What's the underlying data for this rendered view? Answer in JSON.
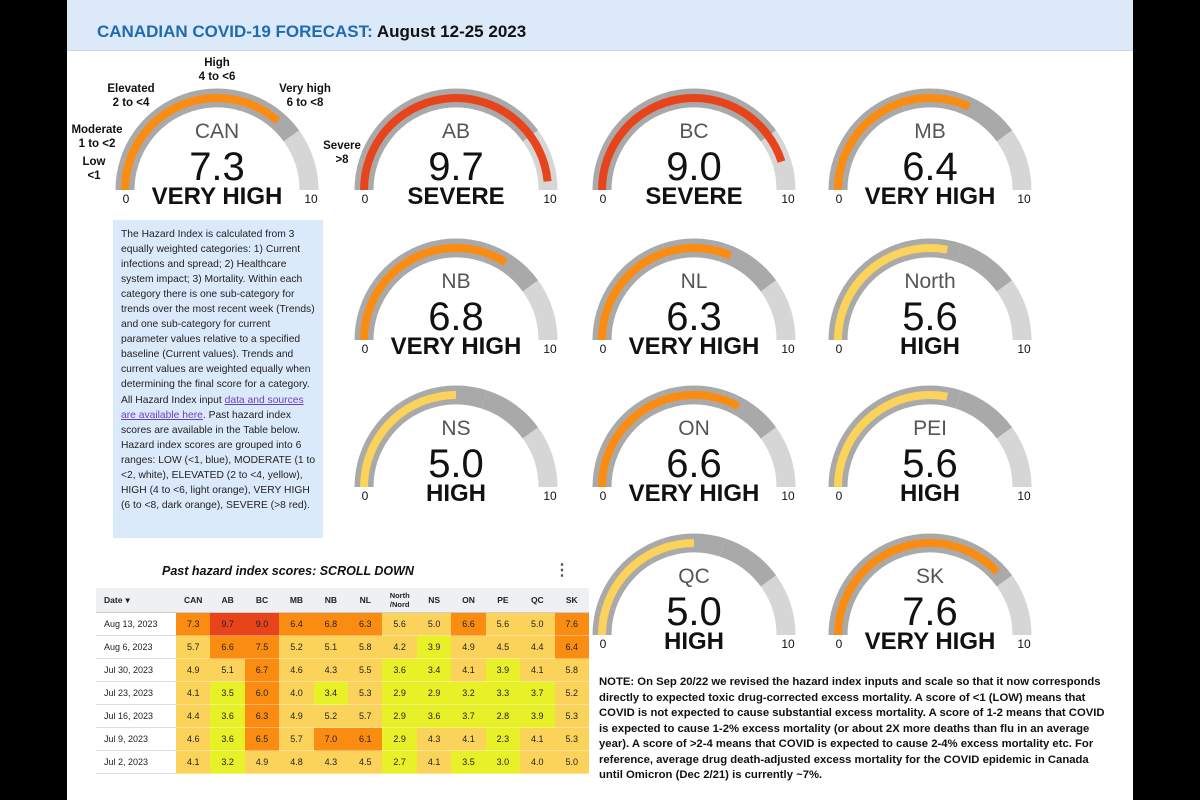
{
  "title": {
    "prefix": "CANADIAN COVID-19 FORECAST:",
    "period": "August 12-25 2023"
  },
  "colors": {
    "low": "#3b82d6",
    "moderate": "#ffffff",
    "elevated": "#e8f028",
    "high": "#fbd35a",
    "very_high": "#fb8c12",
    "severe": "#e8441c",
    "track_dark": "#a9a9a9",
    "track_light": "#d6d6d6",
    "header_bg": "#dbe9f8"
  },
  "scale": {
    "min": 0,
    "max": 10,
    "min_label": "0",
    "max_label": "10"
  },
  "legend": {
    "low": [
      "Low",
      "<1"
    ],
    "moderate": [
      "Moderate",
      "1 to <2"
    ],
    "elevated": [
      "Elevated",
      "2 to <4"
    ],
    "high": [
      "High",
      "4 to <6"
    ],
    "very_high": [
      "Very high",
      "6 to <8"
    ],
    "severe": [
      "Severe",
      ">8"
    ]
  },
  "gauges": [
    {
      "region": "CAN",
      "score": 7.3,
      "score_text": "7.3",
      "level": "VERY HIGH",
      "color": "#fb8c12"
    },
    {
      "region": "AB",
      "score": 9.7,
      "score_text": "9.7",
      "level": "SEVERE",
      "color": "#e8441c"
    },
    {
      "region": "BC",
      "score": 9.0,
      "score_text": "9.0",
      "level": "SEVERE",
      "color": "#e8441c"
    },
    {
      "region": "MB",
      "score": 6.4,
      "score_text": "6.4",
      "level": "VERY HIGH",
      "color": "#fb8c12"
    },
    {
      "region": "NB",
      "score": 6.8,
      "score_text": "6.8",
      "level": "VERY HIGH",
      "color": "#fb8c12"
    },
    {
      "region": "NL",
      "score": 6.3,
      "score_text": "6.3",
      "level": "VERY HIGH",
      "color": "#fb8c12"
    },
    {
      "region": "North",
      "score": 5.6,
      "score_text": "5.6",
      "level": "HIGH",
      "color": "#fbd35a"
    },
    {
      "region": "NS",
      "score": 5.0,
      "score_text": "5.0",
      "level": "HIGH",
      "color": "#fbd35a"
    },
    {
      "region": "ON",
      "score": 6.6,
      "score_text": "6.6",
      "level": "VERY HIGH",
      "color": "#fb8c12"
    },
    {
      "region": "PEI",
      "score": 5.6,
      "score_text": "5.6",
      "level": "HIGH",
      "color": "#fbd35a"
    },
    {
      "region": "QC",
      "score": 5.0,
      "score_text": "5.0",
      "level": "HIGH",
      "color": "#fbd35a"
    },
    {
      "region": "SK",
      "score": 7.6,
      "score_text": "7.6",
      "level": "VERY HIGH",
      "color": "#fb8c12"
    }
  ],
  "info": {
    "text_before": "The Hazard Index is calculated from 3 equally weighted categories: 1) Current infections and spread; 2) Healthcare system impact; 3) Mortality. Within each category there is one sub-category for trends over the most recent week (Trends) and one sub-category for current parameter values relative to a specified baseline (Current values). Trends and current values are weighted equally when determining the final score for a category. All Hazard Index input ",
    "link": "data and sources are available here",
    "text_after": ". Past hazard index scores are available in the Table below. Hazard index scores are grouped into 6 ranges: LOW (<1, blue), MODERATE (1 to <2, white), ELEVATED (2 to <4, yellow), HIGH (4 to <6, light orange), VERY HIGH (6 to <8, dark orange), SEVERE (>8 red)."
  },
  "past": {
    "title": "Past hazard index scores: SCROLL DOWN",
    "menu_icon": "kebab-menu-icon",
    "date_header": "Date",
    "sort_indicator": "▾",
    "columns": [
      "CAN",
      "AB",
      "BC",
      "MB",
      "NB",
      "NL",
      "North /Nord",
      "NS",
      "ON",
      "PE",
      "QC",
      "SK"
    ],
    "rows": [
      {
        "date": "Aug 13, 2023",
        "values": [
          "7.3",
          "9.7",
          "9.0",
          "6.4",
          "6.8",
          "6.3",
          "5.6",
          "5.0",
          "6.6",
          "5.6",
          "5.0",
          "7.6"
        ]
      },
      {
        "date": "Aug 6, 2023",
        "values": [
          "5.7",
          "6.6",
          "7.5",
          "5.2",
          "5.1",
          "5.8",
          "4.2",
          "3.9",
          "4.9",
          "4.5",
          "4.4",
          "6.4"
        ]
      },
      {
        "date": "Jul 30, 2023",
        "values": [
          "4.9",
          "5.1",
          "6.7",
          "4.6",
          "4.3",
          "5.5",
          "3.6",
          "3.4",
          "4.1",
          "3.9",
          "4.1",
          "5.8"
        ]
      },
      {
        "date": "Jul 23, 2023",
        "values": [
          "4.1",
          "3.5",
          "6.0",
          "4.0",
          "3.4",
          "5.3",
          "2.9",
          "2.9",
          "3.2",
          "3.3",
          "3.7",
          "5.2"
        ]
      },
      {
        "date": "Jul 16, 2023",
        "values": [
          "4.4",
          "3.6",
          "6.3",
          "4.9",
          "5.2",
          "5.7",
          "2.9",
          "3.6",
          "3.7",
          "2.8",
          "3.9",
          "5.3"
        ]
      },
      {
        "date": "Jul 9, 2023",
        "values": [
          "4.6",
          "3.6",
          "6.5",
          "5.7",
          "7.0",
          "6.1",
          "2.9",
          "4.3",
          "4.1",
          "2.3",
          "4.1",
          "5.3"
        ]
      },
      {
        "date": "Jul 2, 2023",
        "values": [
          "4.1",
          "3.2",
          "4.9",
          "4.8",
          "4.3",
          "4.5",
          "2.7",
          "4.1",
          "3.5",
          "3.0",
          "4.0",
          "5.0"
        ]
      }
    ]
  },
  "note": "NOTE: On Sep 20/22 we revised the hazard index inputs and scale so that it now corresponds directly to expected toxic drug-corrected excess mortality. A score of <1 (LOW) means that COVID is not expected to cause substantial excess mortality. A score of 1-2 means that COVID is expected to cause 1-2% excess mortality (or about 2X more deaths than flu in an average year). A score of >2-4 means that COVID is expected to cause 2-4% excess mortality etc. For reference, average drug death-adjusted excess mortality for the COVID epidemic in Canada until Omicron (Dec 2/21) is currently ~7%."
}
